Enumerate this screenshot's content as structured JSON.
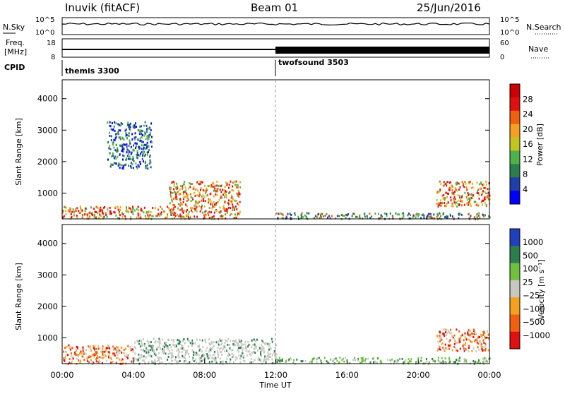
{
  "header": {
    "station": "Inuvik (fitACF)",
    "beam": "Beam 01",
    "date": "25/Jun/2016"
  },
  "strip_panels": {
    "nsky_label": "N.Sky",
    "nsky_ticks": [
      "10^5",
      "10^0"
    ],
    "nsearch_label": "N.Search",
    "nsearch_ticks": [
      "10^5",
      "10^0"
    ],
    "freq_label_line1": "Freq.",
    "freq_label_line2": "[MHz]",
    "freq_ticks": [
      "18",
      "8"
    ],
    "nave_label": "Nave",
    "nave_ticks": [
      "60",
      "0"
    ],
    "cpid_label": "CPID",
    "cpid_segments": [
      {
        "name": "themis 3300",
        "start_hour": 0,
        "end_hour": 12
      },
      {
        "name": "twofsound 3503",
        "start_hour": 12,
        "end_hour": 24
      }
    ]
  },
  "chart_data": [
    {
      "type": "heatmap",
      "title": "Power",
      "ylabel": "Slant Range [km]",
      "xlabel": "Time UT",
      "xlim": [
        0,
        24
      ],
      "ylim": [
        180,
        4600
      ],
      "yticks": [
        "1000",
        "2000",
        "3000",
        "4000"
      ],
      "colorbar": {
        "label": "Power [dB]",
        "ticks": [
          "4",
          "8",
          "12",
          "16",
          "20",
          "24",
          "28"
        ],
        "colors": [
          "#0000ff",
          "#1e3fa8",
          "#2e7d4f",
          "#4fb14a",
          "#c2c420",
          "#f4a020",
          "#f06010",
          "#e01010",
          "#cc0000"
        ]
      },
      "regions": [
        {
          "hours": [
            0,
            6
          ],
          "range_km": [
            200,
            600
          ],
          "level": "high"
        },
        {
          "hours": [
            6,
            10
          ],
          "range_km": [
            200,
            1400
          ],
          "level": "high"
        },
        {
          "hours": [
            2.5,
            5
          ],
          "range_km": [
            1800,
            3300
          ],
          "level": "low"
        },
        {
          "hours": [
            12,
            24
          ],
          "range_km": [
            200,
            400
          ],
          "level": "mid"
        },
        {
          "hours": [
            21,
            24
          ],
          "range_km": [
            600,
            1400
          ],
          "level": "high"
        }
      ]
    },
    {
      "type": "heatmap",
      "title": "Velocity",
      "ylabel": "Slant Range [km]",
      "xlabel": "Time UT",
      "xlim": [
        0,
        24
      ],
      "ylim": [
        180,
        4600
      ],
      "yticks": [
        "1000",
        "2000",
        "3000",
        "4000"
      ],
      "xticks": [
        "00:00",
        "04:00",
        "08:00",
        "12:00",
        "16:00",
        "20:00",
        "00:00"
      ],
      "colorbar": {
        "label": "Velocity  [m s⁻¹]",
        "ticks": [
          "1000",
          "500",
          "100",
          "25",
          "−25",
          "−100",
          "−500",
          "−1000"
        ],
        "colors": [
          "#2040c0",
          "#2e7d4f",
          "#6fc040",
          "#c8c8c0",
          "#f4a020",
          "#f06010",
          "#e01010"
        ]
      },
      "regions": [
        {
          "hours": [
            0,
            4
          ],
          "range_km": [
            200,
            800
          ],
          "level": "negative"
        },
        {
          "hours": [
            4,
            12
          ],
          "range_km": [
            200,
            1000
          ],
          "level": "ground"
        },
        {
          "hours": [
            12,
            24
          ],
          "range_km": [
            200,
            400
          ],
          "level": "positive"
        },
        {
          "hours": [
            21,
            24
          ],
          "range_km": [
            600,
            1300
          ],
          "level": "negative"
        }
      ]
    }
  ]
}
